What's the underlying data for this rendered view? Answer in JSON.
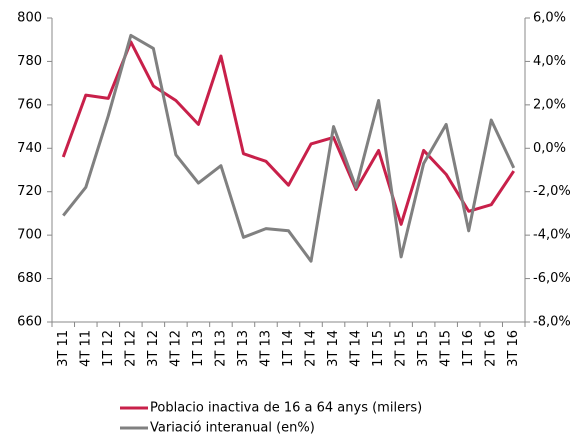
{
  "chart_data": {
    "type": "line",
    "categories": [
      "3T 11",
      "4T 11",
      "1T 12",
      "2T 12",
      "3T 12",
      "4T 12",
      "1T 13",
      "2T 13",
      "3T 13",
      "4T 13",
      "1T 14",
      "2T 14",
      "3T 14",
      "4T 14",
      "1T 15",
      "2T 15",
      "3T 15",
      "4T 15",
      "1T 16",
      "2T 16",
      "3T 16"
    ],
    "series": [
      {
        "name": "Poblacio inactiva de 16 a 64 anys (milers)",
        "color": "#c8204a",
        "values": [
          736,
          764.5,
          763,
          789,
          768.7,
          762,
          751,
          782.5,
          737.5,
          734,
          723,
          742,
          745,
          721,
          739,
          705,
          739,
          728,
          711,
          714,
          729.5
        ]
      },
      {
        "name": "Variació interanual (en%)",
        "color": "#808080",
        "axis": "y2",
        "values": [
          -3.1,
          -1.8,
          1.5,
          5.2,
          4.6,
          -0.3,
          -1.6,
          -0.8,
          -4.1,
          -3.7,
          -3.8,
          -5.2,
          1.0,
          -1.8,
          2.2,
          -5.0,
          -0.7,
          1.1,
          -3.8,
          1.3,
          -0.9
        ]
      }
    ],
    "ylim": [
      660,
      800
    ],
    "yticks": [
      660,
      680,
      700,
      720,
      740,
      760,
      780,
      800
    ],
    "y2lim": [
      -8,
      6
    ],
    "y2ticks": [
      {
        "value": -8,
        "label": "-8,0%"
      },
      {
        "value": -6,
        "label": "-6,0%"
      },
      {
        "value": -4,
        "label": "-4,0%"
      },
      {
        "value": -2,
        "label": "-2,0%"
      },
      {
        "value": 0,
        "label": "0,0%"
      },
      {
        "value": 2,
        "label": "2,0%"
      },
      {
        "value": 4,
        "label": "4,0%"
      },
      {
        "value": 6,
        "label": "6,0%"
      }
    ],
    "legend": "bottom"
  }
}
